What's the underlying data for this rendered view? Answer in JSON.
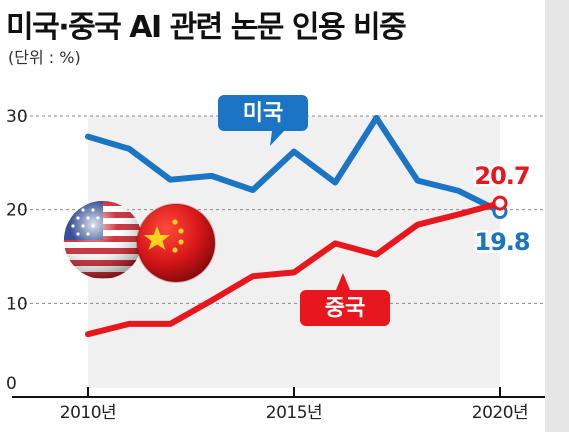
{
  "header": {
    "title": "미국·중국 AI 관련 논문 인용 비중",
    "unit": "(단위 : %)"
  },
  "chart_data": {
    "type": "line",
    "title": "미국·중국 AI 관련 논문 인용 비중",
    "x": [
      2010,
      2011,
      2012,
      2013,
      2014,
      2015,
      2016,
      2017,
      2018,
      2019,
      2020
    ],
    "x_ticks": [
      2010,
      2015,
      2020
    ],
    "x_tick_labels": [
      "2010년",
      "2015년",
      "2020년"
    ],
    "y_ticks": [
      0,
      10,
      20,
      30
    ],
    "ylim": [
      0,
      30
    ],
    "grid": true,
    "series": [
      {
        "name": "미국",
        "color": "#1b74c4",
        "values": [
          27.8,
          26.5,
          23.2,
          23.6,
          22.1,
          26.2,
          22.9,
          29.8,
          23.1,
          22.0,
          19.8
        ],
        "end_label": "19.8"
      },
      {
        "name": "중국",
        "color": "#e8161d",
        "values": [
          6.7,
          7.8,
          7.8,
          10.3,
          12.9,
          13.3,
          16.4,
          15.2,
          18.4,
          19.5,
          20.7
        ],
        "end_label": "20.7"
      }
    ]
  }
}
